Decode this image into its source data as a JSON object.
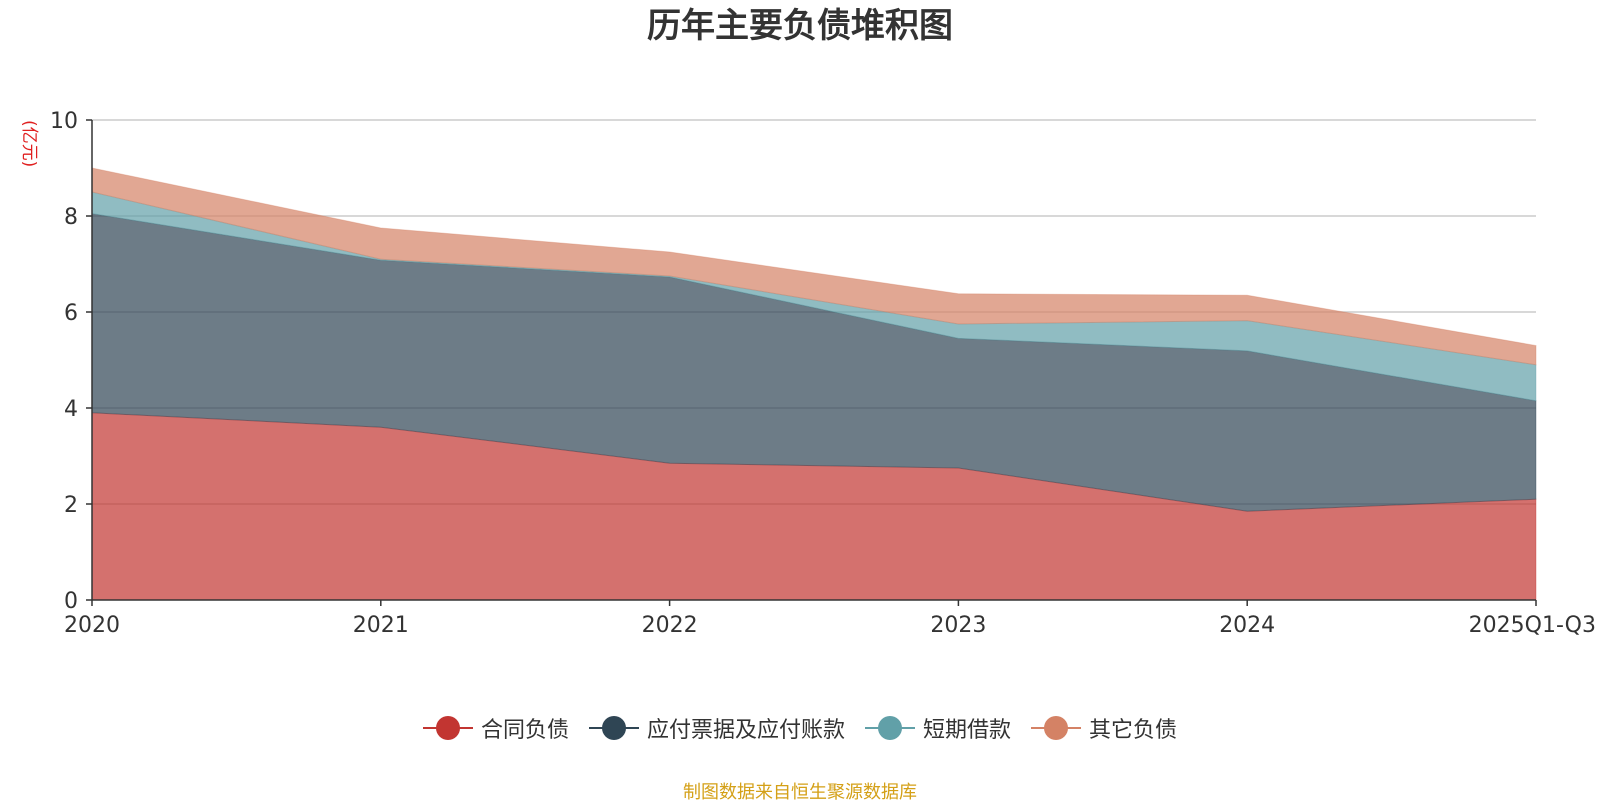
{
  "chart_data": {
    "type": "area",
    "stacked": true,
    "title": "历年主要负债堆积图",
    "ylabel": "(亿元)",
    "categories": [
      "2020",
      "2021",
      "2022",
      "2023",
      "2024",
      "2025Q1-Q3"
    ],
    "ylim": [
      0,
      10
    ],
    "yticks": [
      0,
      2,
      4,
      6,
      8,
      10
    ],
    "grid": true,
    "legend_position": "bottom",
    "series": [
      {
        "name": "合同负债",
        "values": [
          3.9,
          3.6,
          2.85,
          2.75,
          1.85,
          2.1
        ],
        "color": "#c23531"
      },
      {
        "name": "应付票据及应付账款",
        "values": [
          4.15,
          3.48,
          3.88,
          2.7,
          3.34,
          2.05
        ],
        "color": "#2f4554"
      },
      {
        "name": "短期借款",
        "values": [
          0.45,
          0.02,
          0.02,
          0.3,
          0.63,
          0.75
        ],
        "color": "#61a0a8"
      },
      {
        "name": "其它负债",
        "values": [
          0.5,
          0.65,
          0.5,
          0.63,
          0.53,
          0.4
        ],
        "color": "#d48265"
      }
    ]
  },
  "source_note": "制图数据来自恒生聚源数据库"
}
